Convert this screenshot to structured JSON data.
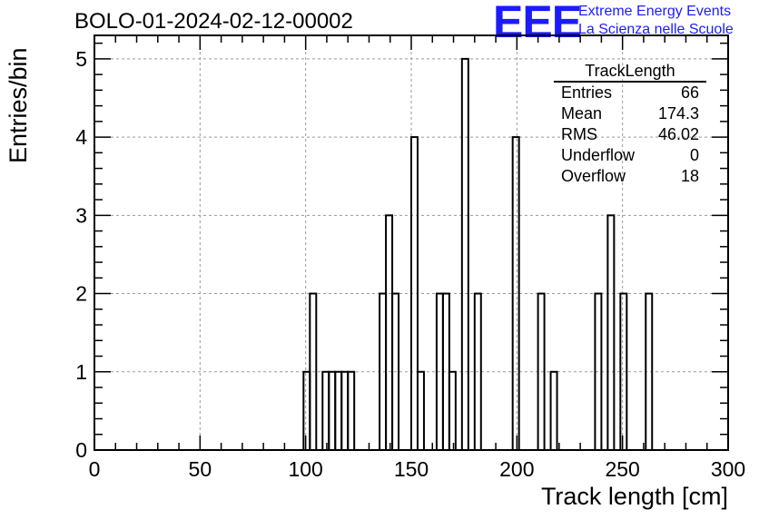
{
  "header": {
    "run_title": "BOLO-01-2024-02-12-00002",
    "logo_text": "EEE",
    "org_line1": "Extreme Energy Events",
    "org_line2": "La Scienza nelle Scuole",
    "logo_color": "#1b1bff"
  },
  "stats_box": {
    "title": "TrackLength",
    "rows": [
      {
        "label": "Entries",
        "value": "66"
      },
      {
        "label": "Mean",
        "value": "174.3"
      },
      {
        "label": "RMS",
        "value": "46.02"
      },
      {
        "label": "Underflow",
        "value": "0"
      },
      {
        "label": "Overflow",
        "value": "18"
      }
    ]
  },
  "chart_data": {
    "type": "bar",
    "histogram": true,
    "xlabel": "Track length [cm]",
    "ylabel": "Entries/bin",
    "xlim": [
      0,
      300
    ],
    "ylim": [
      0,
      5.3
    ],
    "bin_width": 3,
    "x_ticks": [
      0,
      50,
      100,
      150,
      200,
      250,
      300
    ],
    "y_ticks": [
      0,
      1,
      2,
      3,
      4,
      5
    ],
    "grid": true,
    "bins": [
      {
        "x": 99,
        "y": 1
      },
      {
        "x": 102,
        "y": 2
      },
      {
        "x": 108,
        "y": 1
      },
      {
        "x": 111,
        "y": 1
      },
      {
        "x": 114,
        "y": 1
      },
      {
        "x": 117,
        "y": 1
      },
      {
        "x": 120,
        "y": 1
      },
      {
        "x": 135,
        "y": 2
      },
      {
        "x": 138,
        "y": 3
      },
      {
        "x": 141,
        "y": 2
      },
      {
        "x": 150,
        "y": 4
      },
      {
        "x": 153,
        "y": 1
      },
      {
        "x": 162,
        "y": 2
      },
      {
        "x": 165,
        "y": 2
      },
      {
        "x": 168,
        "y": 1
      },
      {
        "x": 174,
        "y": 5
      },
      {
        "x": 180,
        "y": 2
      },
      {
        "x": 198,
        "y": 4
      },
      {
        "x": 210,
        "y": 2
      },
      {
        "x": 216,
        "y": 1
      },
      {
        "x": 237,
        "y": 2
      },
      {
        "x": 243,
        "y": 3
      },
      {
        "x": 249,
        "y": 2
      },
      {
        "x": 261,
        "y": 2
      }
    ]
  }
}
